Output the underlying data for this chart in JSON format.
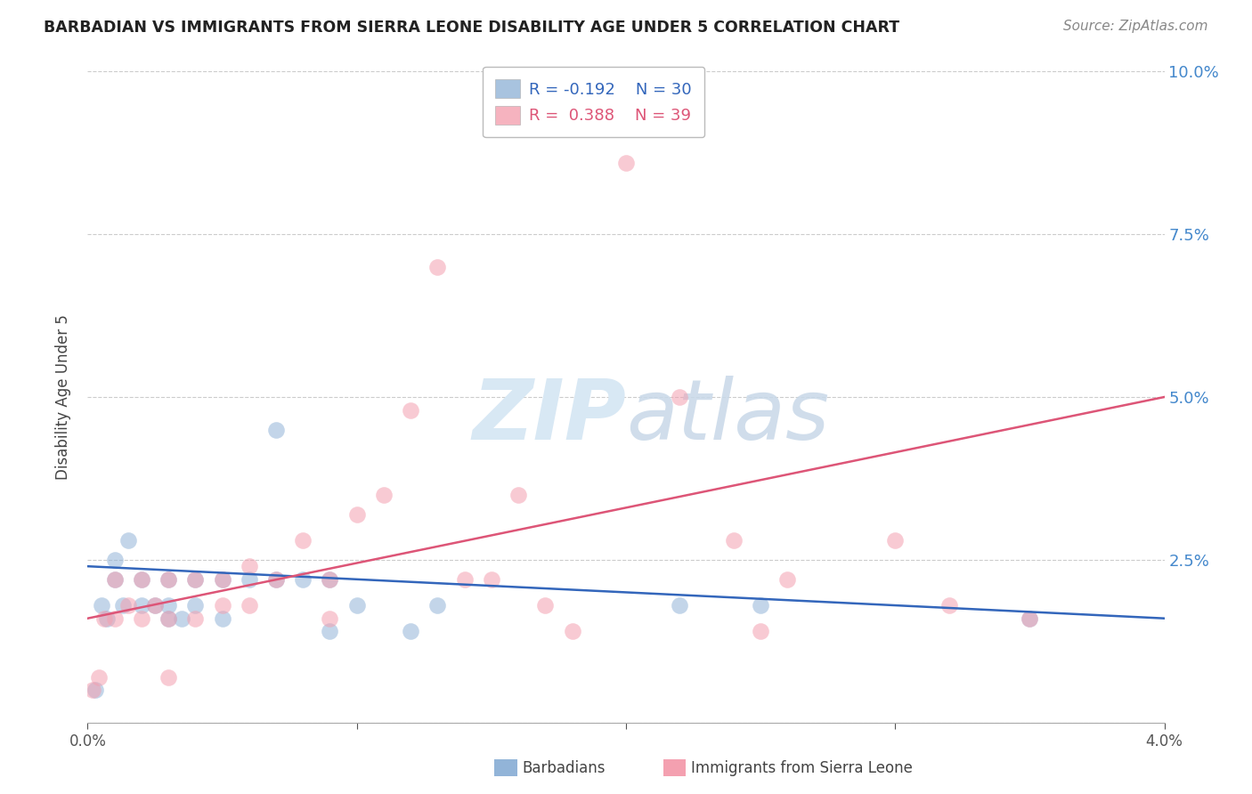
{
  "title": "BARBADIAN VS IMMIGRANTS FROM SIERRA LEONE DISABILITY AGE UNDER 5 CORRELATION CHART",
  "source": "Source: ZipAtlas.com",
  "ylabel": "Disability Age Under 5",
  "x_min": 0.0,
  "x_max": 0.04,
  "y_min": 0.0,
  "y_max": 0.1,
  "x_ticks": [
    0.0,
    0.01,
    0.02,
    0.03,
    0.04
  ],
  "y_ticks": [
    0.0,
    0.025,
    0.05,
    0.075,
    0.1
  ],
  "y_tick_labels": [
    "",
    "2.5%",
    "5.0%",
    "7.5%",
    "10.0%"
  ],
  "legend_r_blue": "R = -0.192",
  "legend_n_blue": "N = 30",
  "legend_r_pink": "R =  0.388",
  "legend_n_pink": "N = 39",
  "color_blue": "#92B4D8",
  "color_pink": "#F4A0B0",
  "color_line_blue": "#3366BB",
  "color_line_pink": "#DD5577",
  "color_right_axis": "#4488CC",
  "watermark_color": "#D8E8F4",
  "bg_color": "#ffffff",
  "blue_x": [
    0.0003,
    0.0005,
    0.0007,
    0.001,
    0.001,
    0.0013,
    0.0015,
    0.002,
    0.002,
    0.0025,
    0.003,
    0.003,
    0.003,
    0.0035,
    0.004,
    0.004,
    0.005,
    0.005,
    0.006,
    0.007,
    0.007,
    0.008,
    0.009,
    0.009,
    0.01,
    0.012,
    0.013,
    0.022,
    0.025,
    0.035
  ],
  "blue_y": [
    0.005,
    0.018,
    0.016,
    0.022,
    0.025,
    0.018,
    0.028,
    0.018,
    0.022,
    0.018,
    0.016,
    0.018,
    0.022,
    0.016,
    0.022,
    0.018,
    0.022,
    0.016,
    0.022,
    0.022,
    0.045,
    0.022,
    0.022,
    0.014,
    0.018,
    0.014,
    0.018,
    0.018,
    0.018,
    0.016
  ],
  "pink_x": [
    0.0002,
    0.0004,
    0.0006,
    0.001,
    0.001,
    0.0015,
    0.002,
    0.002,
    0.0025,
    0.003,
    0.003,
    0.003,
    0.004,
    0.004,
    0.005,
    0.005,
    0.006,
    0.006,
    0.007,
    0.008,
    0.009,
    0.009,
    0.01,
    0.011,
    0.012,
    0.013,
    0.014,
    0.015,
    0.016,
    0.017,
    0.018,
    0.02,
    0.022,
    0.024,
    0.025,
    0.026,
    0.03,
    0.032,
    0.035
  ],
  "pink_y": [
    0.005,
    0.007,
    0.016,
    0.016,
    0.022,
    0.018,
    0.016,
    0.022,
    0.018,
    0.007,
    0.016,
    0.022,
    0.022,
    0.016,
    0.022,
    0.018,
    0.018,
    0.024,
    0.022,
    0.028,
    0.016,
    0.022,
    0.032,
    0.035,
    0.048,
    0.07,
    0.022,
    0.022,
    0.035,
    0.018,
    0.014,
    0.086,
    0.05,
    0.028,
    0.014,
    0.022,
    0.028,
    0.018,
    0.016
  ],
  "blue_line_x": [
    0.0,
    0.04
  ],
  "blue_line_y": [
    0.024,
    0.016
  ],
  "pink_line_x": [
    0.0,
    0.04
  ],
  "pink_line_y": [
    0.016,
    0.05
  ]
}
